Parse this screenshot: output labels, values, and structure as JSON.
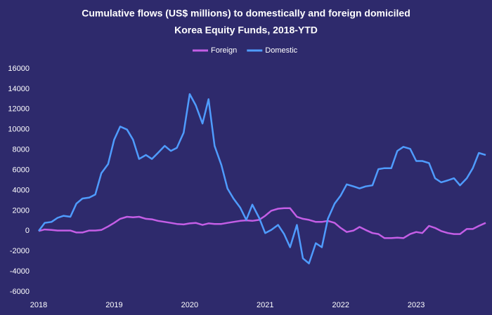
{
  "chart_data": {
    "type": "line",
    "title": [
      "Cumulative flows (US$ millions) to domestically and foreign domiciled",
      "Korea Equity Funds, 2018-YTD"
    ],
    "x": [
      2018,
      2018.08,
      2018.17,
      2018.25,
      2018.33,
      2018.42,
      2018.5,
      2018.58,
      2018.67,
      2018.75,
      2018.83,
      2018.92,
      2019,
      2019.08,
      2019.17,
      2019.25,
      2019.33,
      2019.42,
      2019.5,
      2019.58,
      2019.67,
      2019.75,
      2019.83,
      2019.92,
      2020,
      2020.08,
      2020.17,
      2020.25,
      2020.33,
      2020.42,
      2020.5,
      2020.58,
      2020.67,
      2020.75,
      2020.83,
      2020.92,
      2021,
      2021.08,
      2021.17,
      2021.25,
      2021.33,
      2021.42,
      2021.5,
      2021.58,
      2021.67,
      2021.75,
      2021.83,
      2021.92,
      2022,
      2022.08,
      2022.17,
      2022.25,
      2022.33,
      2022.42,
      2022.5,
      2022.58,
      2022.67,
      2022.75,
      2022.83,
      2022.92,
      2023,
      2023.08,
      2023.17,
      2023.25,
      2023.33,
      2023.42,
      2023.5,
      2023.58,
      2023.67,
      2023.75,
      2023.83,
      2023.92
    ],
    "series": [
      {
        "name": "Foreign",
        "color": "#c45ee6",
        "values": [
          0,
          150,
          100,
          50,
          50,
          50,
          -150,
          -150,
          50,
          50,
          100,
          450,
          800,
          1200,
          1400,
          1350,
          1400,
          1200,
          1150,
          1000,
          900,
          800,
          700,
          650,
          750,
          800,
          600,
          750,
          700,
          700,
          800,
          900,
          1000,
          1050,
          1000,
          1100,
          1500,
          2000,
          2200,
          2250,
          2250,
          1400,
          1200,
          1100,
          900,
          900,
          1000,
          800,
          300,
          -100,
          50,
          400,
          100,
          -200,
          -300,
          -700,
          -700,
          -650,
          -700,
          -300,
          -100,
          -200,
          500,
          300,
          0,
          -200,
          -300,
          -300,
          200,
          200,
          500,
          800
        ]
      },
      {
        "name": "Domestic",
        "color": "#4f9cff",
        "values": [
          0,
          800,
          900,
          1300,
          1500,
          1400,
          2700,
          3200,
          3300,
          3600,
          5700,
          6600,
          9000,
          10300,
          10000,
          9000,
          7100,
          7500,
          7100,
          7700,
          8400,
          7900,
          8200,
          9700,
          13500,
          12400,
          10600,
          13000,
          8400,
          6500,
          4200,
          3200,
          2300,
          1100,
          2600,
          1300,
          -200,
          100,
          600,
          -300,
          -1600,
          600,
          -2700,
          -3200,
          -1200,
          -1600,
          1200,
          2700,
          3500,
          4600,
          4400,
          4200,
          4400,
          4500,
          6100,
          6200,
          6200,
          7900,
          8300,
          8100,
          6900,
          6900,
          6700,
          5200,
          4800,
          5000,
          5200,
          4500,
          5200,
          6200,
          7700,
          7500
        ]
      }
    ],
    "xlim": [
      2018,
      2023.92
    ],
    "xticks": [
      2018,
      2019,
      2020,
      2021,
      2022,
      2023
    ],
    "ylim": [
      -6000,
      16000
    ],
    "yticks": [
      -6000,
      -4000,
      -2000,
      0,
      2000,
      4000,
      6000,
      8000,
      10000,
      12000,
      14000,
      16000
    ],
    "grid": false,
    "legend": "top"
  }
}
